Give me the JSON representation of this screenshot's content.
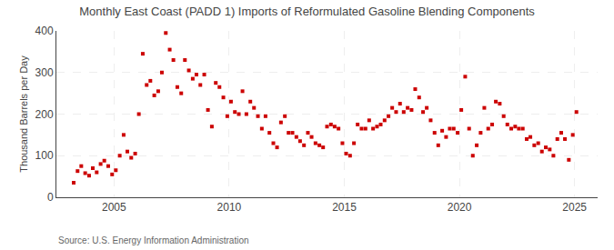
{
  "chart_data": {
    "type": "scatter",
    "title": "Monthly East Coast (PADD 1) Imports of Reformulated Gasoline Blending Components",
    "ylabel": "Thousand Barrels per Day",
    "annotations": [
      "Source: U.S. Energy Information Administration"
    ],
    "color": "#cc0000",
    "marker": "square",
    "grid": true,
    "xlim": [
      2002.5,
      2026.0
    ],
    "ylim": [
      0,
      400
    ],
    "xticks": [
      2005,
      2010,
      2015,
      2020,
      2025
    ],
    "yticks": [
      0,
      100,
      200,
      300,
      400
    ],
    "x": [
      2003.25,
      2003.42,
      2003.58,
      2003.75,
      2003.92,
      2004.08,
      2004.25,
      2004.42,
      2004.58,
      2004.75,
      2004.92,
      2005.08,
      2005.25,
      2005.42,
      2005.58,
      2005.75,
      2005.92,
      2006.08,
      2006.25,
      2006.42,
      2006.58,
      2006.75,
      2006.92,
      2007.08,
      2007.25,
      2007.42,
      2007.58,
      2007.75,
      2007.92,
      2008.08,
      2008.25,
      2008.42,
      2008.58,
      2008.75,
      2008.92,
      2009.08,
      2009.25,
      2009.42,
      2009.58,
      2009.75,
      2009.92,
      2010.08,
      2010.25,
      2010.42,
      2010.58,
      2010.75,
      2010.92,
      2011.08,
      2011.25,
      2011.42,
      2011.58,
      2011.75,
      2011.92,
      2012.08,
      2012.25,
      2012.42,
      2012.58,
      2012.75,
      2012.92,
      2013.08,
      2013.25,
      2013.42,
      2013.58,
      2013.75,
      2013.92,
      2014.08,
      2014.25,
      2014.42,
      2014.58,
      2014.75,
      2014.92,
      2015.08,
      2015.25,
      2015.42,
      2015.58,
      2015.75,
      2015.92,
      2016.08,
      2016.25,
      2016.42,
      2016.58,
      2016.75,
      2016.92,
      2017.08,
      2017.25,
      2017.42,
      2017.58,
      2017.75,
      2017.92,
      2018.08,
      2018.25,
      2018.42,
      2018.58,
      2018.75,
      2018.92,
      2019.08,
      2019.25,
      2019.42,
      2019.58,
      2019.75,
      2019.92,
      2020.08,
      2020.25,
      2020.42,
      2020.58,
      2020.75,
      2020.92,
      2021.08,
      2021.25,
      2021.42,
      2021.58,
      2021.75,
      2021.92,
      2022.08,
      2022.25,
      2022.42,
      2022.58,
      2022.75,
      2022.92,
      2023.08,
      2023.25,
      2023.42,
      2023.58,
      2023.75,
      2023.92,
      2024.08,
      2024.25,
      2024.42,
      2024.58,
      2024.75,
      2024.92,
      2025.08
    ],
    "values": [
      35,
      63,
      75,
      58,
      52,
      70,
      60,
      80,
      88,
      75,
      55,
      65,
      100,
      150,
      110,
      95,
      105,
      200,
      345,
      270,
      280,
      245,
      255,
      300,
      395,
      355,
      330,
      265,
      250,
      330,
      305,
      285,
      295,
      270,
      295,
      210,
      170,
      275,
      265,
      240,
      195,
      230,
      205,
      200,
      255,
      200,
      230,
      215,
      195,
      165,
      195,
      155,
      130,
      120,
      180,
      195,
      155,
      155,
      145,
      135,
      125,
      155,
      145,
      130,
      125,
      120,
      170,
      175,
      170,
      165,
      130,
      105,
      100,
      130,
      175,
      165,
      165,
      185,
      165,
      170,
      175,
      185,
      195,
      215,
      205,
      225,
      205,
      215,
      210,
      260,
      240,
      205,
      215,
      185,
      155,
      125,
      160,
      145,
      165,
      165,
      155,
      210,
      290,
      165,
      100,
      125,
      155,
      215,
      165,
      175,
      230,
      225,
      195,
      175,
      165,
      170,
      165,
      165,
      140,
      145,
      125,
      130,
      110,
      120,
      115,
      100,
      140,
      155,
      140,
      90,
      150,
      205
    ]
  }
}
